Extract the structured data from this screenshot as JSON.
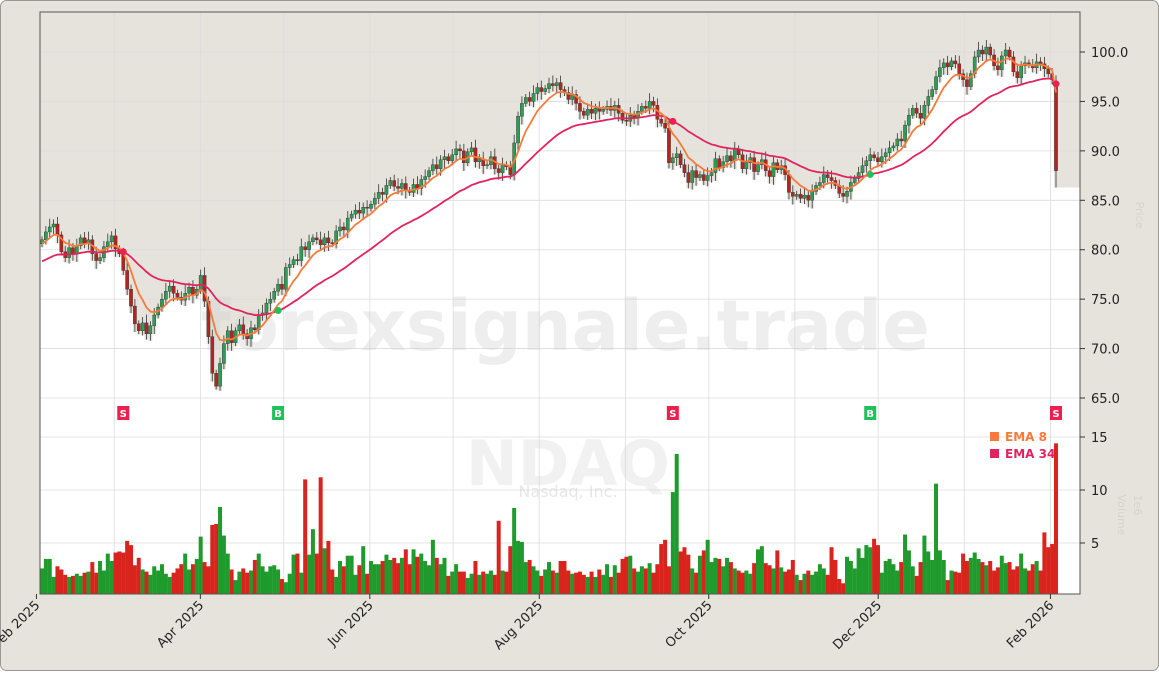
{
  "chart_data": {
    "type": "candlestick",
    "ticker": "NDAQ",
    "company": "Nasdaq, Inc.",
    "watermark": "forexsignale.trade",
    "start_date": "2025-02-03",
    "end_date": "2026-02-03",
    "price_axis": {
      "label": "Price",
      "ylim": [
        63.8,
        104
      ],
      "ticks": [
        65,
        70,
        75,
        80,
        85,
        90,
        95,
        100
      ],
      "tick_labels": [
        "65.0",
        "70.0",
        "75.0",
        "80.0",
        "85.0",
        "90.0",
        "95.0",
        "100.0"
      ]
    },
    "volume_axis": {
      "label": "Volume",
      "unit": "1e6",
      "ticks": [
        5,
        10,
        15
      ],
      "tick_labels": [
        "5",
        "10",
        "15"
      ]
    },
    "x_ticks": [
      {
        "date": "2025-02-01",
        "label": "Feb 2025"
      },
      {
        "date": "2025-04-01",
        "label": "Apr 2025"
      },
      {
        "date": "2025-06-01",
        "label": "Jun 2025"
      },
      {
        "date": "2025-08-01",
        "label": "Aug 2025"
      },
      {
        "date": "2025-10-01",
        "label": "Oct 2025"
      },
      {
        "date": "2025-12-01",
        "label": "Dec 2025"
      },
      {
        "date": "2026-02-01",
        "label": "Feb 2026"
      }
    ],
    "minor_grid_dates": [
      "2025-03-01",
      "2025-05-01",
      "2025-07-01",
      "2025-09-01",
      "2025-11-01",
      "2026-01-01"
    ],
    "grid": true,
    "legend": {
      "placement": "right",
      "items": [
        {
          "label": "EMA 8",
          "color": "#f47b3a"
        },
        {
          "label": "EMA 34",
          "color": "#e0245e"
        }
      ]
    },
    "colors": {
      "up": "#2e9e55",
      "down": "#b3261e",
      "vol_up": "#1f9a2c",
      "vol_down": "#d9231d",
      "ema8": "#f47b3a",
      "ema34": "#e0245e",
      "buy": "#1fc25a",
      "sell": "#ee1f4f"
    },
    "close": [
      81.0,
      81.8,
      82.3,
      82.6,
      81.5,
      79.8,
      79.2,
      80.2,
      79.6,
      80.4,
      81.2,
      80.6,
      81.0,
      79.6,
      78.9,
      79.2,
      80.3,
      80.8,
      81.4,
      80.1,
      79.6,
      77.9,
      76.0,
      74.3,
      72.5,
      71.8,
      72.6,
      71.5,
      72.3,
      73.4,
      74.2,
      75.0,
      75.8,
      76.3,
      75.6,
      75.2,
      74.9,
      75.6,
      76.2,
      75.4,
      76.0,
      77.4,
      74.8,
      71.2,
      67.5,
      66.2,
      68.5,
      70.5,
      71.8,
      70.6,
      71.8,
      72.4,
      71.5,
      71.0,
      72.1,
      71.9,
      73.4,
      73.6,
      74.6,
      75.0,
      75.8,
      76.5,
      76.0,
      78.2,
      78.5,
      79.0,
      78.9,
      80.3,
      80.0,
      80.8,
      81.2,
      81.0,
      80.5,
      81.2,
      80.7,
      80.6,
      81.9,
      82.3,
      82.0,
      83.2,
      83.6,
      84.0,
      83.7,
      84.3,
      84.2,
      84.6,
      85.2,
      85.8,
      85.6,
      86.5,
      87.0,
      86.4,
      86.2,
      86.7,
      86.0,
      85.8,
      86.6,
      86.2,
      87.1,
      87.4,
      88.0,
      88.6,
      88.2,
      89.1,
      89.4,
      89.0,
      89.6,
      90.2,
      90.0,
      88.8,
      89.9,
      90.3,
      88.9,
      89.2,
      88.5,
      88.6,
      89.4,
      88.2,
      87.8,
      88.6,
      88.4,
      87.6,
      90.8,
      93.5,
      94.8,
      95.4,
      95.0,
      95.8,
      96.4,
      96.0,
      96.3,
      96.8,
      96.6,
      96.9,
      96.2,
      95.9,
      95.2,
      95.7,
      94.8,
      94.0,
      93.6,
      94.2,
      93.8,
      94.3,
      94.0,
      94.2,
      94.5,
      94.1,
      94.6,
      93.8,
      93.1,
      93.0,
      93.6,
      93.4,
      94.0,
      94.5,
      94.3,
      95.0,
      94.6,
      93.2,
      92.8,
      92.3,
      88.8,
      89.3,
      89.7,
      88.6,
      87.8,
      86.8,
      88.0,
      87.3,
      87.6,
      87.0,
      87.5,
      87.8,
      89.2,
      88.3,
      88.9,
      89.5,
      89.0,
      90.2,
      89.6,
      88.2,
      88.8,
      89.3,
      87.9,
      88.6,
      89.1,
      88.0,
      87.4,
      88.8,
      88.1,
      88.5,
      87.6,
      85.8,
      85.4,
      85.6,
      85.2,
      85.5,
      85.0,
      85.9,
      86.5,
      86.8,
      87.6,
      87.3,
      87.0,
      86.5,
      85.7,
      85.4,
      85.9,
      86.8,
      87.2,
      87.8,
      88.5,
      89.0,
      89.6,
      89.3,
      88.9,
      89.4,
      89.8,
      90.3,
      90.5,
      91.2,
      91.0,
      92.6,
      93.6,
      94.3,
      93.8,
      93.3,
      94.6,
      95.5,
      96.2,
      97.5,
      98.4,
      98.9,
      98.5,
      99.1,
      98.8,
      97.8,
      97.2,
      96.5,
      97.8,
      99.5,
      100.2,
      99.8,
      100.5,
      99.7,
      98.6,
      98.2,
      99.6,
      100.2,
      99.5,
      98.0,
      97.4,
      98.6,
      98.9,
      98.7,
      98.4,
      99.0,
      98.8,
      98.3,
      97.8,
      97.2,
      88.0
    ],
    "last_bar": {
      "open": 96.8,
      "low": 86.3
    },
    "volume_millions": [
      2.6,
      3.5,
      3.5,
      1.8,
      2.8,
      2.5,
      2.0,
      1.8,
      1.9,
      2.1,
      1.9,
      2.2,
      2.3,
      3.2,
      2.2,
      3.3,
      2.4,
      4.0,
      3.3,
      4.1,
      4.2,
      4.1,
      5.2,
      4.8,
      2.9,
      3.6,
      2.5,
      2.3,
      2.0,
      2.8,
      2.4,
      3.0,
      2.1,
      1.8,
      2.2,
      2.6,
      3.0,
      4.0,
      2.5,
      3.0,
      3.5,
      5.6,
      3.2,
      2.8,
      6.7,
      6.8,
      8.4,
      5.7,
      4.0,
      2.5,
      1.5,
      2.3,
      2.6,
      2.2,
      2.4,
      3.4,
      4.0,
      2.8,
      2.3,
      2.8,
      2.9,
      2.5,
      1.6,
      1.3,
      2.1,
      3.9,
      4.0,
      2.2,
      11.0,
      3.9,
      6.3,
      4.0,
      11.2,
      4.5,
      5.2,
      2.5,
      1.8,
      3.3,
      2.8,
      3.8,
      3.8,
      2.0,
      2.9,
      4.7,
      2.1,
      3.3,
      3.0,
      3.0,
      3.3,
      3.9,
      3.4,
      3.6,
      3.1,
      3.6,
      4.4,
      3.0,
      4.4,
      3.7,
      4.0,
      3.3,
      2.9,
      5.3,
      3.6,
      3.0,
      3.6,
      1.9,
      2.3,
      3.0,
      2.3,
      2.3,
      1.7,
      2.1,
      3.3,
      2.0,
      2.3,
      2.1,
      2.4,
      2.0,
      7.1,
      2.4,
      2.3,
      4.7,
      8.3,
      5.2,
      5.1,
      3.2,
      3.4,
      2.8,
      2.4,
      1.9,
      2.5,
      3.2,
      2.4,
      2.2,
      3.3,
      3.3,
      2.4,
      2.1,
      2.2,
      2.3,
      2.0,
      1.8,
      2.3,
      1.8,
      2.5,
      2.0,
      3.0,
      1.8,
      2.9,
      2.2,
      3.5,
      3.7,
      3.8,
      2.6,
      2.3,
      2.8,
      2.6,
      3.1,
      2.2,
      3.0,
      4.9,
      5.3,
      2.8,
      9.8,
      13.4,
      4.2,
      4.6,
      3.9,
      2.6,
      2.2,
      3.8,
      4.3,
      5.3,
      3.2,
      3.6,
      3.5,
      2.8,
      3.6,
      3.2,
      2.6,
      2.4,
      2.2,
      2.4,
      2.1,
      3.1,
      4.4,
      4.7,
      3.1,
      2.9,
      2.6,
      4.3,
      2.7,
      2.3,
      2.5,
      3.4,
      2.0,
      1.5,
      2.1,
      2.4,
      2.0,
      2.3,
      3.0,
      2.6,
      2.0,
      4.6,
      3.4,
      1.6,
      1.2,
      3.7,
      3.3,
      2.6,
      4.5,
      3.6,
      4.8,
      4.6,
      5.4,
      4.8,
      2.2,
      3.3,
      3.5,
      3.0,
      2.4,
      3.2,
      5.8,
      4.3,
      2.8,
      1.9,
      3.2,
      5.7,
      4.2,
      3.4,
      10.6,
      4.3,
      3.4,
      1.5,
      2.4,
      2.3,
      2.2,
      4.0,
      3.3,
      3.6,
      4.1,
      3.5,
      3.2,
      2.9,
      3.3,
      2.4,
      2.7,
      3.8,
      3.1,
      3.2,
      2.5,
      2.8,
      4.0,
      2.6,
      2.4,
      3.0,
      3.3,
      2.4,
      6.0,
      4.6,
      4.9,
      14.4
    ],
    "ema_periods": [
      8,
      34
    ],
    "signals": [
      {
        "type": "S",
        "bar": 21
      },
      {
        "type": "B",
        "bar": 61
      },
      {
        "type": "S",
        "bar": 163
      },
      {
        "type": "B",
        "bar": 214
      },
      {
        "type": "S",
        "bar": 262
      }
    ]
  }
}
